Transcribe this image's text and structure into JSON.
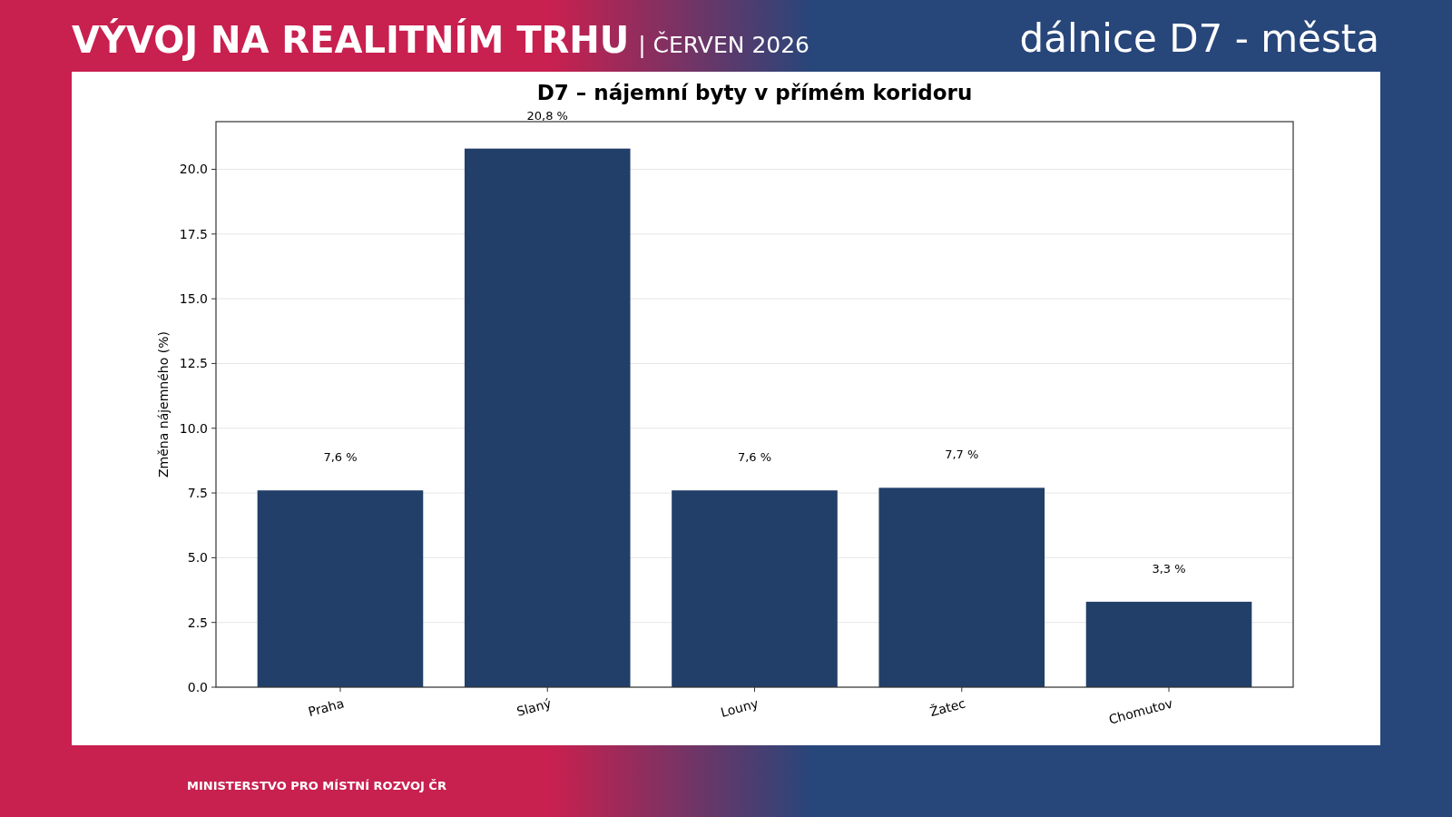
{
  "chart_data": {
    "type": "bar",
    "title": "D7 – nájemní byty v přímém koridoru",
    "ylabel": "Změna nájemného (%)",
    "categories": [
      "Praha",
      "Slaný",
      "Louny",
      "Žatec",
      "Chomutov"
    ],
    "values": [
      7.6,
      20.8,
      7.6,
      7.7,
      3.3
    ],
    "value_labels": [
      "7,6 %",
      "20,8 %",
      "7,6 %",
      "7,7 %",
      "3,3 %"
    ],
    "color": "#213f69",
    "ylim": [
      0,
      21.84
    ],
    "yticks": [
      {
        "value": 0,
        "label": "0.0"
      },
      {
        "value": 2.5,
        "label": "2.5"
      },
      {
        "value": 5,
        "label": "5.0"
      },
      {
        "value": 7.5,
        "label": "7.5"
      },
      {
        "value": 10,
        "label": "10.0"
      },
      {
        "value": 12.5,
        "label": "12.5"
      },
      {
        "value": 15,
        "label": "15.0"
      },
      {
        "value": 17.5,
        "label": "17.5"
      },
      {
        "value": 20,
        "label": "20.0"
      }
    ],
    "grid": "y",
    "annotations": [
      "VÝVOJ NA REALITNÍM TRHU",
      "| ČERVEN 2026",
      "dálnice D7 - města",
      "MINISTERSTVO PRO MÍSTNÍ ROZVOJ ČR"
    ]
  }
}
